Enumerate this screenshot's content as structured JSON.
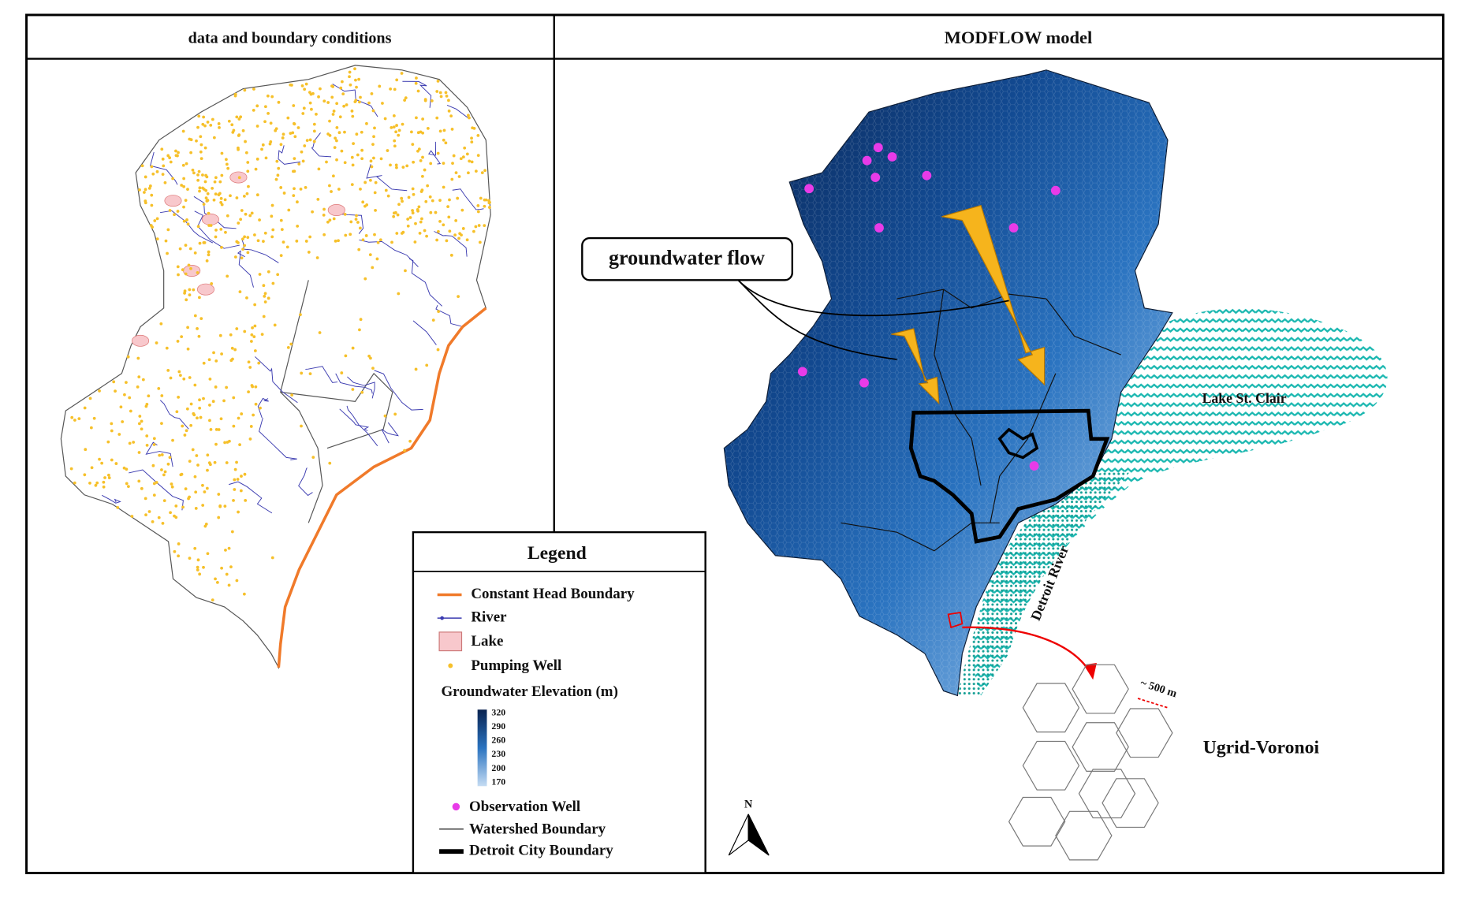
{
  "panels": {
    "left": {
      "title": "data and boundary conditions"
    },
    "right": {
      "title": "MODFLOW model"
    }
  },
  "legend": {
    "title": "Legend",
    "items": [
      {
        "label": "Constant Head Boundary"
      },
      {
        "label": "River"
      },
      {
        "label": "Lake"
      },
      {
        "label": "Pumping Well"
      }
    ],
    "colorbar": {
      "title": "Groundwater Elevation (m)",
      "ticks": [
        320,
        290,
        260,
        230,
        200,
        170
      ]
    },
    "items2": [
      {
        "label": "Observation Well"
      },
      {
        "label": "Watershed Boundary"
      },
      {
        "label": "Detroit City Boundary"
      }
    ]
  },
  "annotations": {
    "flow": "groundwater flow",
    "lake": "Lake St. Clair",
    "river": "Detroit River",
    "scale": "~ 500 m",
    "grid": "Ugrid-Voronoi",
    "north": "N"
  }
}
